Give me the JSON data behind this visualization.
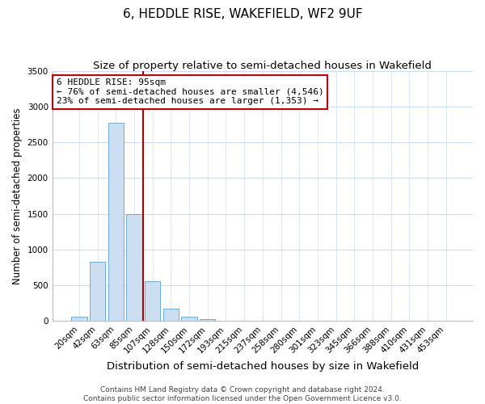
{
  "title": "6, HEDDLE RISE, WAKEFIELD, WF2 9UF",
  "subtitle": "Size of property relative to semi-detached houses in Wakefield",
  "bar_labels": [
    "20sqm",
    "42sqm",
    "63sqm",
    "85sqm",
    "107sqm",
    "128sqm",
    "150sqm",
    "172sqm",
    "193sqm",
    "215sqm",
    "237sqm",
    "258sqm",
    "280sqm",
    "301sqm",
    "323sqm",
    "345sqm",
    "366sqm",
    "388sqm",
    "410sqm",
    "431sqm",
    "453sqm"
  ],
  "bar_values": [
    60,
    830,
    2780,
    1500,
    550,
    175,
    60,
    25,
    0,
    0,
    0,
    0,
    0,
    0,
    0,
    0,
    0,
    0,
    0,
    0,
    0
  ],
  "bar_color": "#ccdff2",
  "bar_edge_color": "#6aaed6",
  "vline_color": "#aa0000",
  "ylim": [
    0,
    3500
  ],
  "yticks": [
    0,
    500,
    1000,
    1500,
    2000,
    2500,
    3000,
    3500
  ],
  "ylabel": "Number of semi-detached properties",
  "xlabel": "Distribution of semi-detached houses by size in Wakefield",
  "annotation_title": "6 HEDDLE RISE: 95sqm",
  "annotation_line1": "← 76% of semi-detached houses are smaller (4,546)",
  "annotation_line2": "23% of semi-detached houses are larger (1,353) →",
  "annotation_box_facecolor": "#ffffff",
  "annotation_box_edgecolor": "#cc0000",
  "footer_line1": "Contains HM Land Registry data © Crown copyright and database right 2024.",
  "footer_line2": "Contains public sector information licensed under the Open Government Licence v3.0.",
  "title_fontsize": 11,
  "subtitle_fontsize": 9.5,
  "ylabel_fontsize": 8.5,
  "xlabel_fontsize": 9.5,
  "tick_fontsize": 7.5,
  "annotation_fontsize": 8,
  "footer_fontsize": 6.5
}
